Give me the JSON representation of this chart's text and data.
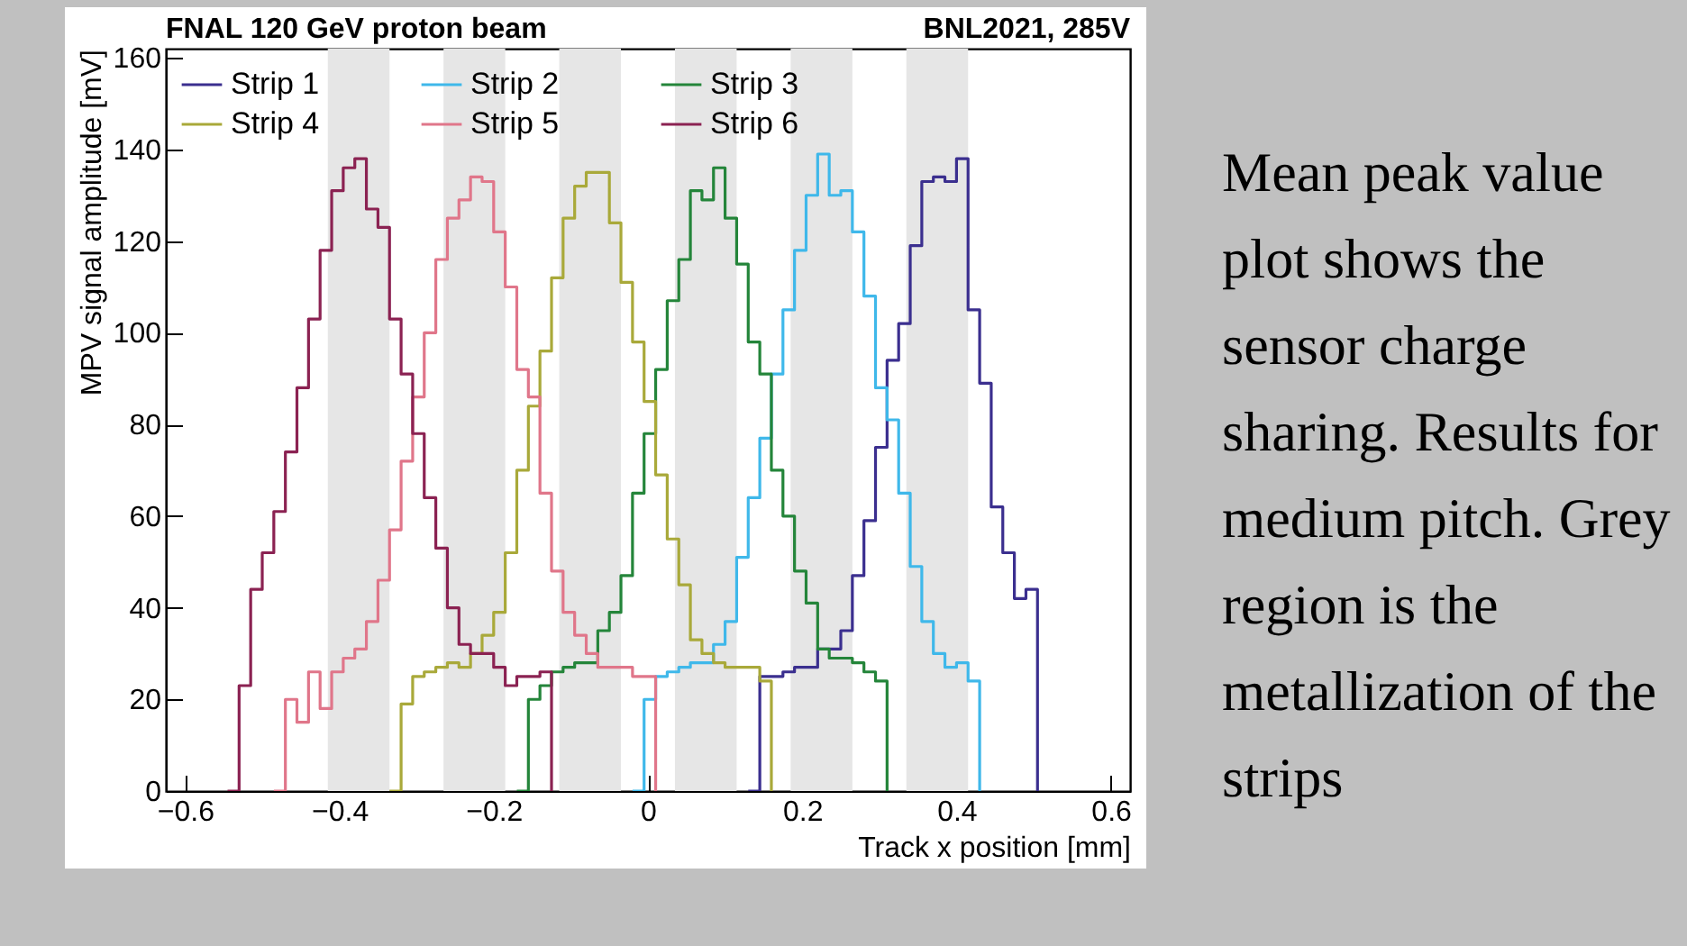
{
  "chart_data": {
    "type": "step",
    "title": "FNAL 120 GeV proton beam",
    "annotations": [
      "BNL2021, 285V",
      "Mean peak value plot shows the sensor charge sharing. Results for medium pitch. Grey region is the metallization of the strips"
    ],
    "xlabel": "Track x position [mm]",
    "ylabel": "MPV signal amplitude [mV]",
    "xlim": [
      -0.625,
      0.625
    ],
    "ylim": [
      0,
      162
    ],
    "xticks": [
      {
        "value": -0.6,
        "label": "−0.6"
      },
      {
        "value": -0.4,
        "label": "−0.4"
      },
      {
        "value": -0.2,
        "label": "−0.2"
      },
      0,
      0.2,
      0.4,
      0.6
    ],
    "yticks": [
      0,
      20,
      40,
      60,
      80,
      100,
      120,
      140,
      160
    ],
    "grid": false,
    "legend": "top",
    "bands": [
      {
        "axis": "x",
        "from": -0.415,
        "to": -0.335,
        "color": "#e6e6e6"
      },
      {
        "axis": "x",
        "from": -0.265,
        "to": -0.185,
        "color": "#e6e6e6"
      },
      {
        "axis": "x",
        "from": -0.115,
        "to": -0.035,
        "color": "#e6e6e6"
      },
      {
        "axis": "x",
        "from": 0.035,
        "to": 0.115,
        "color": "#e6e6e6"
      },
      {
        "axis": "x",
        "from": 0.185,
        "to": 0.265,
        "color": "#e6e6e6"
      },
      {
        "axis": "x",
        "from": 0.335,
        "to": 0.415,
        "color": "#e6e6e6"
      }
    ],
    "series": [
      {
        "name": "Strip 1",
        "color": "#3b2f8f",
        "x": [
          0.13,
          0.145,
          0.16,
          0.175,
          0.19,
          0.205,
          0.22,
          0.235,
          0.25,
          0.265,
          0.28,
          0.295,
          0.31,
          0.325,
          0.34,
          0.355,
          0.37,
          0.385,
          0.4,
          0.415,
          0.43,
          0.445,
          0.46,
          0.475,
          0.49,
          0.505
        ],
        "values": [
          0,
          25,
          25,
          26,
          27,
          27,
          31,
          31,
          35,
          47,
          59,
          75,
          94,
          102,
          119,
          133,
          134,
          133,
          138,
          105,
          89,
          62,
          52,
          42,
          44,
          0
        ]
      },
      {
        "name": "Strip 2",
        "color": "#3fb8ea",
        "x": [
          -0.02,
          -0.005,
          0.01,
          0.025,
          0.04,
          0.055,
          0.07,
          0.085,
          0.1,
          0.115,
          0.13,
          0.145,
          0.16,
          0.175,
          0.19,
          0.205,
          0.22,
          0.235,
          0.25,
          0.265,
          0.28,
          0.295,
          0.31,
          0.325,
          0.34,
          0.355,
          0.37,
          0.385,
          0.4,
          0.415,
          0.43
        ],
        "values": [
          0,
          20,
          25,
          26,
          27,
          28,
          28,
          32,
          37,
          51,
          64,
          77,
          91,
          105,
          118,
          130,
          139,
          130,
          131,
          122,
          108,
          88,
          81,
          65,
          49,
          37,
          30,
          27,
          28,
          24,
          0
        ]
      },
      {
        "name": "Strip 3",
        "color": "#24853a",
        "x": [
          -0.17,
          -0.155,
          -0.14,
          -0.125,
          -0.11,
          -0.095,
          -0.08,
          -0.065,
          -0.05,
          -0.035,
          -0.02,
          -0.005,
          0.01,
          0.025,
          0.04,
          0.055,
          0.07,
          0.085,
          0.1,
          0.115,
          0.13,
          0.145,
          0.16,
          0.175,
          0.19,
          0.205,
          0.22,
          0.235,
          0.25,
          0.265,
          0.28,
          0.295,
          0.31
        ],
        "values": [
          0,
          20,
          23,
          26,
          27,
          28,
          28,
          35,
          39,
          47,
          65,
          78,
          92,
          107,
          116,
          131,
          129,
          136,
          125,
          115,
          98,
          91,
          70,
          60,
          48,
          41,
          31,
          29,
          29,
          28,
          26,
          24,
          0
        ]
      },
      {
        "name": "Strip 4",
        "color": "#a9a93a",
        "x": [
          -0.335,
          -0.32,
          -0.305,
          -0.29,
          -0.275,
          -0.26,
          -0.245,
          -0.23,
          -0.215,
          -0.2,
          -0.185,
          -0.17,
          -0.155,
          -0.14,
          -0.125,
          -0.11,
          -0.095,
          -0.08,
          -0.065,
          -0.05,
          -0.035,
          -0.02,
          -0.005,
          0.01,
          0.025,
          0.04,
          0.055,
          0.07,
          0.085,
          0.1,
          0.115,
          0.13,
          0.145,
          0.16
        ],
        "values": [
          0,
          19,
          25,
          26,
          27,
          28,
          27,
          30,
          34,
          39,
          52,
          70,
          84,
          96,
          112,
          125,
          132,
          135,
          135,
          124,
          111,
          98,
          85,
          69,
          55,
          45,
          33,
          30,
          28,
          27,
          27,
          27,
          24,
          0
        ]
      },
      {
        "name": "Strip 5",
        "color": "#e0768a",
        "x": [
          -0.485,
          -0.47,
          -0.455,
          -0.44,
          -0.425,
          -0.41,
          -0.395,
          -0.38,
          -0.365,
          -0.35,
          -0.335,
          -0.32,
          -0.305,
          -0.29,
          -0.275,
          -0.26,
          -0.245,
          -0.23,
          -0.215,
          -0.2,
          -0.185,
          -0.17,
          -0.155,
          -0.14,
          -0.125,
          -0.11,
          -0.095,
          -0.08,
          -0.065,
          -0.05,
          -0.035,
          -0.02,
          -0.005,
          0.01
        ],
        "values": [
          0,
          20,
          15,
          26,
          18,
          26,
          29,
          31,
          37,
          46,
          57,
          72,
          86,
          100,
          116,
          125,
          129,
          134,
          133,
          122,
          110,
          92,
          86,
          65,
          48,
          39,
          34,
          30,
          27,
          27,
          27,
          25,
          25,
          0
        ]
      },
      {
        "name": "Strip 6",
        "color": "#8b2252",
        "x": [
          -0.545,
          -0.53,
          -0.515,
          -0.5,
          -0.485,
          -0.47,
          -0.455,
          -0.44,
          -0.425,
          -0.41,
          -0.395,
          -0.38,
          -0.365,
          -0.35,
          -0.335,
          -0.32,
          -0.305,
          -0.29,
          -0.275,
          -0.26,
          -0.245,
          -0.23,
          -0.215,
          -0.2,
          -0.185,
          -0.17,
          -0.155,
          -0.14,
          -0.125
        ],
        "values": [
          0,
          23,
          44,
          52,
          61,
          74,
          88,
          103,
          118,
          131,
          136,
          138,
          127,
          123,
          103,
          91,
          78,
          64,
          53,
          40,
          32,
          30,
          30,
          27,
          23,
          25,
          25,
          26,
          0
        ]
      }
    ]
  }
}
